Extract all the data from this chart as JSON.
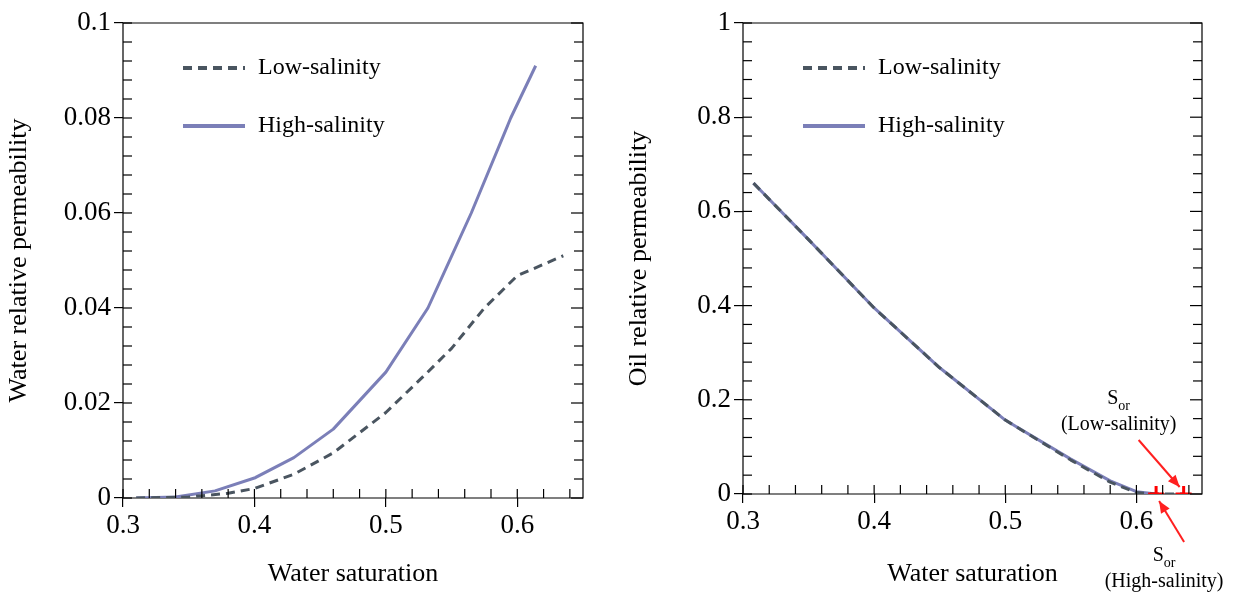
{
  "chart_data": [
    {
      "type": "line",
      "xlabel": "Water saturation",
      "ylabel": "Water relative permeability",
      "xlim": [
        0.3,
        0.65
      ],
      "ylim": [
        0,
        0.1
      ],
      "xticks": [
        0.3,
        {
          "value": 0.32,
          "label": null
        },
        {
          "value": 0.34,
          "label": null
        },
        {
          "value": 0.36,
          "label": null
        },
        {
          "value": 0.38,
          "label": null
        },
        0.4,
        {
          "value": 0.42,
          "label": null
        },
        {
          "value": 0.44,
          "label": null
        },
        {
          "value": 0.46,
          "label": null
        },
        {
          "value": 0.48,
          "label": null
        },
        0.5,
        {
          "value": 0.52,
          "label": null
        },
        {
          "value": 0.54,
          "label": null
        },
        {
          "value": 0.56,
          "label": null
        },
        {
          "value": 0.58,
          "label": null
        },
        0.6,
        {
          "value": 0.62,
          "label": null
        },
        {
          "value": 0.64,
          "label": null
        }
      ],
      "yticks": [
        0,
        {
          "value": 0.004,
          "label": null
        },
        {
          "value": 0.008,
          "label": null
        },
        {
          "value": 0.012,
          "label": null
        },
        {
          "value": 0.016,
          "label": null
        },
        0.02,
        {
          "value": 0.024,
          "label": null
        },
        {
          "value": 0.028,
          "label": null
        },
        {
          "value": 0.032,
          "label": null
        },
        {
          "value": 0.036,
          "label": null
        },
        0.04,
        {
          "value": 0.044,
          "label": null
        },
        {
          "value": 0.048,
          "label": null
        },
        {
          "value": 0.052,
          "label": null
        },
        {
          "value": 0.056,
          "label": null
        },
        0.06,
        {
          "value": 0.064,
          "label": null
        },
        {
          "value": 0.068,
          "label": null
        },
        {
          "value": 0.072,
          "label": null
        },
        {
          "value": 0.076,
          "label": null
        },
        0.08,
        {
          "value": 0.084,
          "label": null
        },
        {
          "value": 0.088,
          "label": null
        },
        {
          "value": 0.092,
          "label": null
        },
        {
          "value": 0.096,
          "label": null
        },
        0.1
      ],
      "legend": "top left",
      "series": [
        {
          "name": "Low-salinity",
          "color": "#4a5560",
          "line_style": "dashed",
          "x": [
            0.31,
            0.35,
            0.38,
            0.4,
            0.43,
            0.46,
            0.5,
            0.53,
            0.55,
            0.575,
            0.6,
            0.635
          ],
          "values": [
            0,
            0.0002,
            0.001,
            0.002,
            0.005,
            0.0095,
            0.018,
            0.026,
            0.0315,
            0.04,
            0.0468,
            0.051
          ]
        },
        {
          "name": "High-salinity",
          "color": "#7b7fb8",
          "line_style": "solid",
          "x": [
            0.31,
            0.34,
            0.37,
            0.4,
            0.43,
            0.46,
            0.5,
            0.532,
            0.565,
            0.595,
            0.614
          ],
          "values": [
            0,
            0.0002,
            0.0015,
            0.0042,
            0.0085,
            0.0145,
            0.0265,
            0.04,
            0.06,
            0.08,
            0.091
          ]
        }
      ]
    },
    {
      "type": "line",
      "xlabel": "Water saturation",
      "ylabel": "Oil relative permeability",
      "xlim": [
        0.3,
        0.65
      ],
      "ylim": [
        0,
        1
      ],
      "xticks": [
        0.3,
        {
          "value": 0.32,
          "label": null
        },
        {
          "value": 0.34,
          "label": null
        },
        {
          "value": 0.36,
          "label": null
        },
        {
          "value": 0.38,
          "label": null
        },
        0.4,
        {
          "value": 0.42,
          "label": null
        },
        {
          "value": 0.44,
          "label": null
        },
        {
          "value": 0.46,
          "label": null
        },
        {
          "value": 0.48,
          "label": null
        },
        0.5,
        {
          "value": 0.52,
          "label": null
        },
        {
          "value": 0.54,
          "label": null
        },
        {
          "value": 0.56,
          "label": null
        },
        {
          "value": 0.58,
          "label": null
        },
        0.6,
        {
          "value": 0.62,
          "label": null
        },
        {
          "value": 0.64,
          "label": null
        }
      ],
      "yticks": [
        0,
        {
          "value": 0.04,
          "label": null
        },
        {
          "value": 0.08,
          "label": null
        },
        {
          "value": 0.12,
          "label": null
        },
        {
          "value": 0.16,
          "label": null
        },
        0.2,
        {
          "value": 0.24,
          "label": null
        },
        {
          "value": 0.28,
          "label": null
        },
        {
          "value": 0.32,
          "label": null
        },
        {
          "value": 0.36,
          "label": null
        },
        0.4,
        {
          "value": 0.44,
          "label": null
        },
        {
          "value": 0.48,
          "label": null
        },
        {
          "value": 0.52,
          "label": null
        },
        {
          "value": 0.56,
          "label": null
        },
        0.6,
        {
          "value": 0.64,
          "label": null
        },
        {
          "value": 0.68,
          "label": null
        },
        {
          "value": 0.72,
          "label": null
        },
        {
          "value": 0.76,
          "label": null
        },
        0.8,
        {
          "value": 0.84,
          "label": null
        },
        {
          "value": 0.88,
          "label": null
        },
        {
          "value": 0.92,
          "label": null
        },
        {
          "value": 0.96,
          "label": null
        },
        1
      ],
      "legend": "top left",
      "series": [
        {
          "name": "Low-salinity",
          "color": "#4a5560",
          "line_style": "dashed",
          "x": [
            0.308,
            0.35,
            0.4,
            0.45,
            0.5,
            0.55,
            0.58,
            0.6,
            0.615,
            0.636
          ],
          "values": [
            0.66,
            0.54,
            0.395,
            0.268,
            0.157,
            0.072,
            0.025,
            0.003,
            0,
            0
          ]
        },
        {
          "name": "High-salinity",
          "color": "#7b7fb8",
          "line_style": "solid",
          "x": [
            0.308,
            0.35,
            0.4,
            0.45,
            0.5,
            0.55,
            0.58,
            0.6,
            0.615
          ],
          "values": [
            0.66,
            0.54,
            0.395,
            0.268,
            0.157,
            0.074,
            0.028,
            0.005,
            0
          ]
        },
        {
          "type": "scatter",
          "color": "#ff0000",
          "marker": "cross",
          "x": [
            0.615,
            0.636
          ],
          "values": [
            0,
            0
          ]
        }
      ],
      "annotations": [
        {
          "text": "S$_{or}$\n(Low-salinity)",
          "x": 0.636,
          "y": 0
        },
        {
          "text": "S$_{or}$\n(High-salinity)",
          "x": 0.615,
          "y": 0
        }
      ]
    }
  ]
}
